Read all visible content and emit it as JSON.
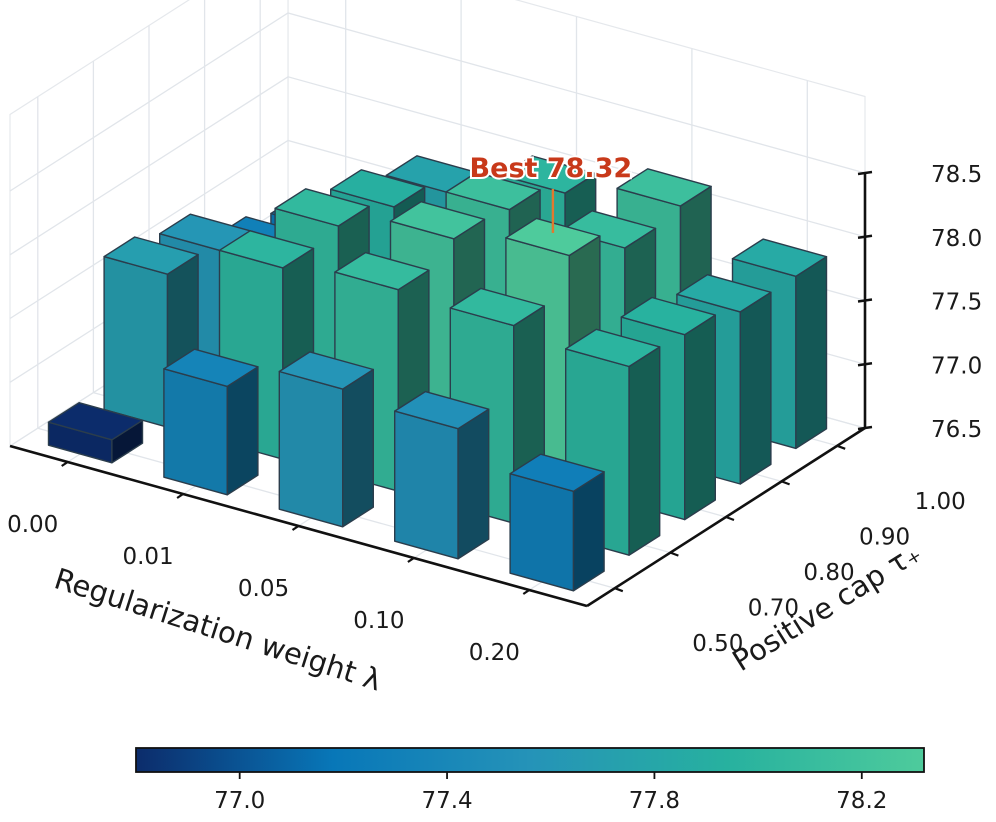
{
  "chart_data": {
    "type": "bar3d",
    "xlabel": "Regularization weight λ",
    "ylabel": "Positive cap τ₊",
    "x_categories": [
      "0.00",
      "0.01",
      "0.05",
      "0.10",
      "0.20"
    ],
    "y_categories": [
      "0.50",
      "0.70",
      "0.80",
      "0.90",
      "1.00"
    ],
    "values": [
      [
        76.68,
        77.35,
        77.58,
        77.52,
        77.28
      ],
      [
        77.7,
        78.0,
        78.08,
        78.05,
        77.98
      ],
      [
        77.6,
        78.05,
        78.2,
        78.32,
        77.95
      ],
      [
        77.3,
        77.92,
        78.15,
        78.1,
        77.85
      ],
      [
        77.2,
        77.75,
        78.0,
        78.15,
        77.85
      ]
    ],
    "zlim": [
      76.5,
      78.5
    ],
    "z_ticks": [
      "76.5",
      "77.0",
      "77.5",
      "78.0",
      "78.5"
    ],
    "colorbar": {
      "min": 76.8,
      "max": 78.32,
      "ticks": [
        "77.0",
        "77.4",
        "77.8",
        "78.2"
      ],
      "colormap": [
        "#0c2c6b",
        "#0877b8",
        "#2593b8",
        "#27b19f",
        "#4ecb9c"
      ]
    },
    "annotation": {
      "text": "Best 78.32",
      "x_index": 3,
      "y_index": 2,
      "color": "#c8391a"
    },
    "grid": true
  }
}
